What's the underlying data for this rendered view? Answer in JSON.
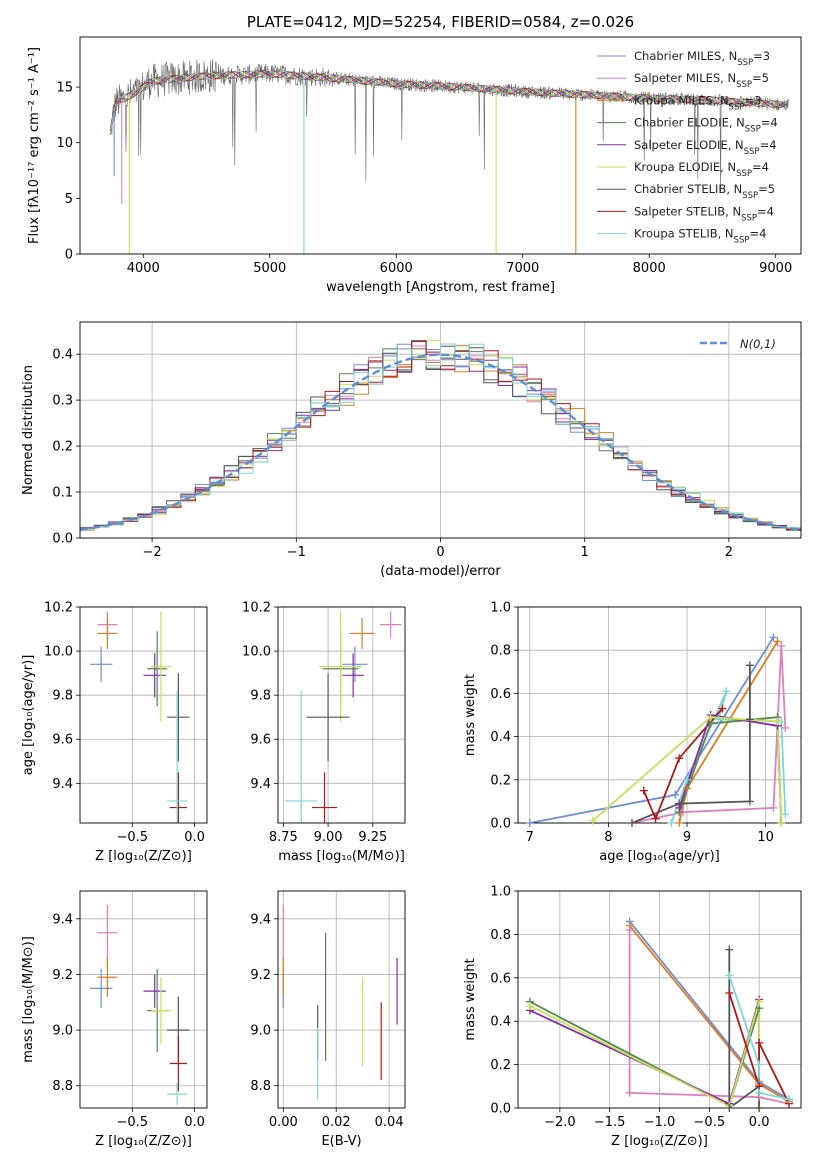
{
  "colors": {
    "Chabrier MILES": "#6b8fd8",
    "Salpeter MILES": "#e07fbd",
    "Kroupa MILES": "#e07b20",
    "Chabrier ELODIE": "#4f8a4f",
    "Salpeter ELODIE": "#8a2aa8",
    "Kroupa ELODIE": "#c8e05a",
    "Chabrier STELIB": "#555555",
    "Salpeter STELIB": "#b01818",
    "Kroupa STELIB": "#7fd6d6"
  },
  "chart_data": [
    {
      "id": "spectrum",
      "type": "line",
      "title": "PLATE=0412, MJD=52254, FIBERID=0584, z=0.026",
      "xlabel": "wavelength [Angstrom, rest frame]",
      "ylabel": "Flux [fλ10⁻¹⁷ erg cm⁻² s⁻¹ A⁻¹]",
      "xlim": [
        3500,
        9200
      ],
      "ylim": [
        0,
        19.5
      ],
      "xticks": [
        4000,
        5000,
        6000,
        7000,
        8000,
        9000
      ],
      "yticks": [
        0,
        5,
        10,
        15
      ],
      "data_range": [
        3740,
        9100
      ],
      "legend_position": "upper-right",
      "legend": [
        {
          "name": "Chabrier MILES",
          "text": "Chabrier MILES, N",
          "sub": "SSP",
          "n": "=3"
        },
        {
          "name": "Salpeter MILES",
          "text": "Salpeter MILES, N",
          "sub": "SSP",
          "n": "=5"
        },
        {
          "name": "Kroupa MILES",
          "text": "Kroupa MILES, N",
          "sub": "SSP",
          "n": "=3"
        },
        {
          "name": "Chabrier ELODIE",
          "text": "Chabrier ELODIE, N",
          "sub": "SSP",
          "n": "=4"
        },
        {
          "name": "Salpeter ELODIE",
          "text": "Salpeter ELODIE, N",
          "sub": "SSP",
          "n": "=4"
        },
        {
          "name": "Kroupa ELODIE",
          "text": "Kroupa ELODIE, N",
          "sub": "SSP",
          "n": "=4"
        },
        {
          "name": "Chabrier STELIB",
          "text": "Chabrier STELIB, N",
          "sub": "SSP",
          "n": "=5"
        },
        {
          "name": "Salpeter STELIB",
          "text": "Salpeter STELIB, N",
          "sub": "SSP",
          "n": "=4"
        },
        {
          "name": "Kroupa STELIB",
          "text": "Kroupa STELIB, N",
          "sub": "SSP",
          "n": "=4"
        }
      ],
      "continuum": [
        [
          3740,
          11
        ],
        [
          3780,
          13.5
        ],
        [
          3850,
          14
        ],
        [
          3950,
          14.5
        ],
        [
          4050,
          15.5
        ],
        [
          4200,
          15.7
        ],
        [
          4500,
          16
        ],
        [
          5000,
          16.2
        ],
        [
          5500,
          15.8
        ],
        [
          6000,
          15.3
        ],
        [
          6500,
          15
        ],
        [
          7000,
          14.6
        ],
        [
          7500,
          14.3
        ],
        [
          8000,
          14
        ],
        [
          8500,
          13.8
        ],
        [
          9100,
          13.4
        ]
      ],
      "dips": [
        {
          "x": 3770,
          "y": 7,
          "series": "Chabrier MILES"
        },
        {
          "x": 3830,
          "y": 4.5,
          "series": "Salpeter MILES"
        },
        {
          "x": 3890,
          "y": 0,
          "series": "Kroupa ELODIE"
        },
        {
          "x": 5270,
          "y": 0,
          "series": "Kroupa STELIB"
        },
        {
          "x": 6790,
          "y": 0,
          "series": "Kroupa ELODIE"
        },
        {
          "x": 7420,
          "y": 0,
          "series": "Kroupa MILES"
        }
      ]
    },
    {
      "id": "residuals",
      "type": "step",
      "xlabel": "(data-model)/error",
      "ylabel": "Normed distribution",
      "xlim": [
        -2.5,
        2.5
      ],
      "ylim": [
        0,
        0.47
      ],
      "xticks": [
        -2,
        -1,
        0,
        1,
        2
      ],
      "yticks": [
        0.0,
        0.1,
        0.2,
        0.3,
        0.4
      ],
      "grid": true,
      "bin_width": 0.1,
      "reference": {
        "label": "N(0,1)",
        "color": "#5b8fd6",
        "mean": 0,
        "sigma": 1
      },
      "legend_position": "upper-right"
    },
    {
      "id": "age-vs-Z",
      "type": "errorbar",
      "xlabel": "Z [log₁₀(Z/Z⊙)]",
      "ylabel": "age  [log₁₀(age/yr)]",
      "xlim": [
        -0.92,
        0.1
      ],
      "ylim": [
        9.22,
        10.2
      ],
      "xticks": [
        -0.5,
        0.0
      ],
      "yticks": [
        9.4,
        9.6,
        9.8,
        10.0,
        10.2
      ],
      "grid": true,
      "points": [
        {
          "series": "Chabrier MILES",
          "x": -0.75,
          "xerr": 0.09,
          "y": 9.94,
          "yerr": 0.08
        },
        {
          "series": "Salpeter MILES",
          "x": -0.7,
          "xerr": 0.08,
          "y": 10.12,
          "yerr": 0.06
        },
        {
          "series": "Kroupa MILES",
          "x": -0.7,
          "xerr": 0.08,
          "y": 10.08,
          "yerr": 0.07
        },
        {
          "series": "Chabrier ELODIE",
          "x": -0.3,
          "xerr": 0.08,
          "y": 9.92,
          "yerr": 0.17
        },
        {
          "series": "Salpeter ELODIE",
          "x": -0.32,
          "xerr": 0.09,
          "y": 9.89,
          "yerr": 0.1
        },
        {
          "series": "Kroupa ELODIE",
          "x": -0.27,
          "xerr": 0.08,
          "y": 9.93,
          "yerr": 0.25
        },
        {
          "series": "Chabrier STELIB",
          "x": -0.13,
          "xerr": 0.09,
          "y": 9.7,
          "yerr": 0.2
        },
        {
          "series": "Salpeter STELIB",
          "x": -0.13,
          "xerr": 0.07,
          "y": 9.29,
          "yerr": 0.16
        },
        {
          "series": "Kroupa STELIB",
          "x": -0.14,
          "xerr": 0.08,
          "y": 9.32,
          "yerr": 0.5
        }
      ]
    },
    {
      "id": "age-vs-mass",
      "type": "errorbar",
      "xlabel": "mass [log₁₀(M/M⊙)]",
      "xlim": [
        8.72,
        9.43
      ],
      "ylim": [
        9.22,
        10.2
      ],
      "xticks": [
        8.75,
        9.0,
        9.25
      ],
      "yticks": [
        9.4,
        9.6,
        9.8,
        10.0,
        10.2
      ],
      "grid": true,
      "points": [
        {
          "series": "Chabrier MILES",
          "x": 9.15,
          "xerr": 0.07,
          "y": 9.94,
          "yerr": 0.08
        },
        {
          "series": "Salpeter MILES",
          "x": 9.35,
          "xerr": 0.06,
          "y": 10.12,
          "yerr": 0.06
        },
        {
          "series": "Kroupa MILES",
          "x": 9.19,
          "xerr": 0.07,
          "y": 10.08,
          "yerr": 0.07
        },
        {
          "series": "Chabrier ELODIE",
          "x": 9.07,
          "xerr": 0.1,
          "y": 9.92,
          "yerr": 0.17
        },
        {
          "series": "Salpeter ELODIE",
          "x": 9.14,
          "xerr": 0.06,
          "y": 9.89,
          "yerr": 0.1
        },
        {
          "series": "Kroupa ELODIE",
          "x": 9.07,
          "xerr": 0.12,
          "y": 9.93,
          "yerr": 0.25
        },
        {
          "series": "Chabrier STELIB",
          "x": 9.0,
          "xerr": 0.12,
          "y": 9.7,
          "yerr": 0.2
        },
        {
          "series": "Salpeter STELIB",
          "x": 8.98,
          "xerr": 0.07,
          "y": 9.29,
          "yerr": 0.16
        },
        {
          "series": "Kroupa STELIB",
          "x": 8.85,
          "xerr": 0.09,
          "y": 9.32,
          "yerr": 0.5
        }
      ]
    },
    {
      "id": "weight-vs-age",
      "type": "line",
      "xlabel": "age  [log₁₀(age/yr)]",
      "ylabel": "mass weight",
      "xlim": [
        6.85,
        10.45
      ],
      "ylim": [
        0,
        1.0
      ],
      "xticks": [
        7,
        8,
        9,
        10
      ],
      "yticks": [
        0.0,
        0.2,
        0.4,
        0.6,
        0.8,
        1.0
      ],
      "grid": true,
      "series": [
        {
          "name": "Chabrier MILES",
          "points": [
            [
              7.0,
              0.0
            ],
            [
              8.85,
              0.13
            ],
            [
              10.1,
              0.86
            ]
          ]
        },
        {
          "name": "Kroupa MILES",
          "points": [
            [
              8.9,
              0.0
            ],
            [
              9.0,
              0.16
            ],
            [
              10.15,
              0.84
            ]
          ]
        },
        {
          "name": "Salpeter MILES",
          "points": [
            [
              8.3,
              0.0
            ],
            [
              8.95,
              0.05
            ],
            [
              10.1,
              0.07
            ],
            [
              10.2,
              0.82
            ],
            [
              10.25,
              0.44
            ]
          ]
        },
        {
          "name": "Kroupa STELIB",
          "points": [
            [
              8.8,
              0.0
            ],
            [
              9.0,
              0.2
            ],
            [
              9.5,
              0.61
            ],
            [
              9.4,
              0.48
            ],
            [
              10.2,
              0.47
            ],
            [
              10.25,
              0.04
            ]
          ]
        },
        {
          "name": "Chabrier STELIB",
          "points": [
            [
              8.3,
              0.0
            ],
            [
              8.9,
              0.09
            ],
            [
              9.8,
              0.1
            ],
            [
              9.8,
              0.73
            ],
            [
              9.8,
              0.48
            ]
          ]
        },
        {
          "name": "Salpeter STELIB",
          "points": [
            [
              8.45,
              0.15
            ],
            [
              8.6,
              0.02
            ],
            [
              8.9,
              0.3
            ],
            [
              9.45,
              0.53
            ]
          ]
        },
        {
          "name": "Chabrier ELODIE",
          "points": [
            [
              8.9,
              0.05
            ],
            [
              9.3,
              0.46
            ],
            [
              10.15,
              0.49
            ],
            [
              10.2,
              0.0
            ]
          ]
        },
        {
          "name": "Salpeter ELODIE",
          "points": [
            [
              8.9,
              0.07
            ],
            [
              9.3,
              0.5
            ],
            [
              10.15,
              0.45
            ],
            [
              10.2,
              0.0
            ]
          ]
        },
        {
          "name": "Kroupa ELODIE",
          "points": [
            [
              7.8,
              0.01
            ],
            [
              9.3,
              0.49
            ],
            [
              10.15,
              0.47
            ],
            [
              10.2,
              0.0
            ]
          ]
        }
      ]
    },
    {
      "id": "mass-vs-Z",
      "type": "errorbar",
      "xlabel": "Z [log₁₀(Z/Z⊙)]",
      "ylabel": "mass [log₁₀(M/M⊙)]",
      "xlim": [
        -0.92,
        0.1
      ],
      "ylim": [
        8.72,
        9.5
      ],
      "xticks": [
        -0.5,
        0.0
      ],
      "yticks": [
        8.8,
        9.0,
        9.2,
        9.4
      ],
      "grid": true,
      "points": [
        {
          "series": "Chabrier MILES",
          "x": -0.75,
          "xerr": 0.09,
          "y": 9.15,
          "yerr": 0.07
        },
        {
          "series": "Salpeter MILES",
          "x": -0.7,
          "xerr": 0.08,
          "y": 9.35,
          "yerr": 0.1
        },
        {
          "series": "Kroupa MILES",
          "x": -0.7,
          "xerr": 0.08,
          "y": 9.19,
          "yerr": 0.07
        },
        {
          "series": "Chabrier ELODIE",
          "x": -0.3,
          "xerr": 0.08,
          "y": 9.07,
          "yerr": 0.15
        },
        {
          "series": "Salpeter ELODIE",
          "x": -0.32,
          "xerr": 0.09,
          "y": 9.14,
          "yerr": 0.06
        },
        {
          "series": "Kroupa ELODIE",
          "x": -0.27,
          "xerr": 0.08,
          "y": 9.07,
          "yerr": 0.12
        },
        {
          "series": "Chabrier STELIB",
          "x": -0.13,
          "xerr": 0.09,
          "y": 9.0,
          "yerr": 0.12
        },
        {
          "series": "Salpeter STELIB",
          "x": -0.13,
          "xerr": 0.07,
          "y": 8.88,
          "yerr": 0.1
        },
        {
          "series": "Kroupa STELIB",
          "x": -0.14,
          "xerr": 0.08,
          "y": 8.77,
          "yerr": 0.04
        }
      ]
    },
    {
      "id": "mass-vs-EBV",
      "type": "errorbar",
      "xlabel": "E(B-V)",
      "xlim": [
        -0.002,
        0.046
      ],
      "ylim": [
        8.72,
        9.5
      ],
      "xticks": [
        0.0,
        0.02,
        0.04
      ],
      "yticks": [
        8.8,
        9.0,
        9.2,
        9.4
      ],
      "grid": true,
      "points": [
        {
          "series": "Chabrier MILES",
          "x": 0.0,
          "y": 9.15,
          "yerr": 0.07
        },
        {
          "series": "Salpeter MILES",
          "x": 0.0,
          "y": 9.35,
          "yerr": 0.1
        },
        {
          "series": "Kroupa MILES",
          "x": 0.0,
          "y": 9.19,
          "yerr": 0.07
        },
        {
          "series": "Chabrier ELODIE",
          "x": 0.016,
          "y": 9.12,
          "yerr": 0.23
        },
        {
          "series": "Salpeter ELODIE",
          "x": 0.043,
          "y": 9.14,
          "yerr": 0.12
        },
        {
          "series": "Kroupa ELODIE",
          "x": 0.03,
          "y": 9.03,
          "yerr": 0.16
        },
        {
          "series": "Chabrier STELIB",
          "x": 0.013,
          "y": 8.99,
          "yerr": 0.1
        },
        {
          "series": "Salpeter STELIB",
          "x": 0.037,
          "y": 8.96,
          "yerr": 0.14
        },
        {
          "series": "Kroupa STELIB",
          "x": 0.013,
          "y": 8.88,
          "yerr": 0.13
        }
      ]
    },
    {
      "id": "weight-vs-Z",
      "type": "line",
      "xlabel": "Z [log₁₀(Z/Z⊙)]",
      "ylabel": "mass weight",
      "xlim": [
        -2.42,
        0.42
      ],
      "ylim": [
        0,
        1.0
      ],
      "xticks": [
        -2.0,
        -1.5,
        -1.0,
        -0.5,
        0.0
      ],
      "yticks": [
        0.0,
        0.2,
        0.4,
        0.6,
        0.8,
        1.0
      ],
      "grid": true,
      "series": [
        {
          "name": "Chabrier MILES",
          "points": [
            [
              -1.3,
              0.86
            ],
            [
              0.0,
              0.12
            ],
            [
              0.3,
              0.04
            ]
          ]
        },
        {
          "name": "Kroupa MILES",
          "points": [
            [
              -1.3,
              0.84
            ],
            [
              0.0,
              0.11
            ],
            [
              0.3,
              0.03
            ]
          ]
        },
        {
          "name": "Salpeter MILES",
          "points": [
            [
              -1.3,
              0.82
            ],
            [
              -1.3,
              0.07
            ],
            [
              0.0,
              0.05
            ],
            [
              0.3,
              0.02
            ]
          ]
        },
        {
          "name": "Chabrier ELODIE",
          "points": [
            [
              -2.3,
              0.49
            ],
            [
              -0.3,
              0.01
            ],
            [
              0.0,
              0.46
            ],
            [
              0.0,
              0.0
            ]
          ]
        },
        {
          "name": "Salpeter ELODIE",
          "points": [
            [
              -2.3,
              0.45
            ],
            [
              -0.3,
              0.02
            ],
            [
              0.0,
              0.5
            ],
            [
              0.0,
              0.0
            ]
          ]
        },
        {
          "name": "Kroupa ELODIE",
          "points": [
            [
              -2.3,
              0.47
            ],
            [
              -0.3,
              0.01
            ],
            [
              0.0,
              0.49
            ],
            [
              0.0,
              0.0
            ]
          ]
        },
        {
          "name": "Chabrier STELIB",
          "points": [
            [
              -0.3,
              0.73
            ],
            [
              -0.3,
              0.0
            ],
            [
              0.0,
              0.1
            ],
            [
              0.0,
              0.0
            ]
          ]
        },
        {
          "name": "Salpeter STELIB",
          "points": [
            [
              -0.3,
              0.53
            ],
            [
              0.0,
              0.1
            ],
            [
              0.0,
              0.3
            ],
            [
              0.3,
              0.02
            ]
          ]
        },
        {
          "name": "Kroupa STELIB",
          "points": [
            [
              -0.3,
              0.61
            ],
            [
              0.0,
              0.2
            ],
            [
              0.0,
              0.07
            ],
            [
              0.3,
              0.04
            ]
          ]
        }
      ]
    }
  ]
}
